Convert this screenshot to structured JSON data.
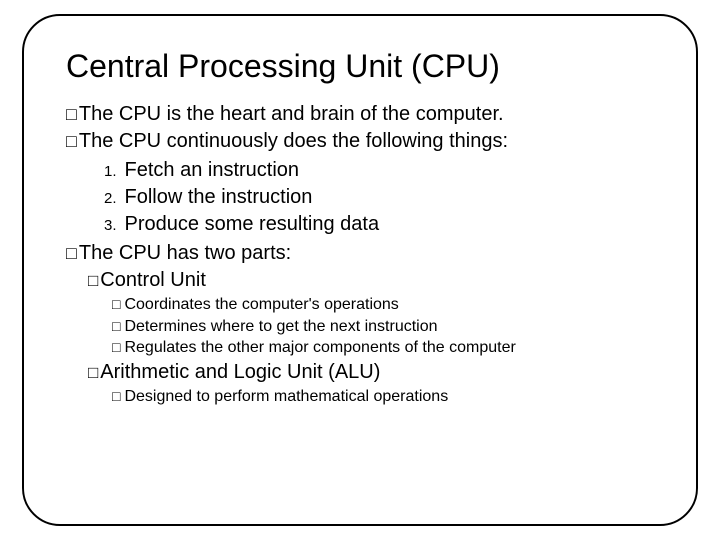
{
  "title": "Central Processing Unit (CPU)",
  "bullets": {
    "b1": "The CPU is the heart and brain of the computer.",
    "b2": "The CPU continuously does the following things:",
    "n1_num": "1.",
    "n1": "Fetch an instruction",
    "n2_num": "2.",
    "n2": "Follow the instruction",
    "n3_num": "3.",
    "n3": "Produce some resulting data",
    "b3": "The CPU has two  parts:",
    "s1": "Control Unit",
    "s1a": "Coordinates the computer's operations",
    "s1b": "Determines where to get the next instruction",
    "s1c": "Regulates the other major components of the computer",
    "s2": "Arithmetic and Logic Unit (ALU)",
    "s2a": "Designed to perform mathematical operations"
  },
  "glyphs": {
    "square": "□"
  },
  "style": {
    "background": "#ffffff",
    "border_color": "#000000",
    "text_color": "#000000",
    "title_fontsize": 32,
    "body_fontsize": 20,
    "sub_fontsize": 16,
    "border_radius": 38
  }
}
